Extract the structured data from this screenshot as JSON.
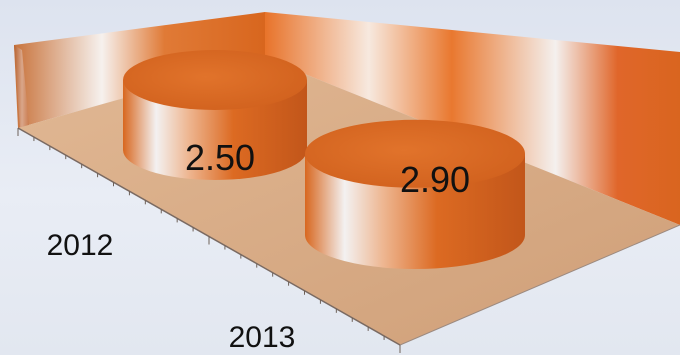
{
  "chart_data": {
    "type": "bar",
    "style": "3d-cylinder",
    "categories": [
      "2012",
      "2013"
    ],
    "values": [
      2.5,
      2.9
    ],
    "data_labels": [
      "2.50",
      "2.90"
    ],
    "colors": {
      "cylinder": "#d9661f",
      "cylinder_highlight": "#f2f2f4",
      "floor": "#d7aa84",
      "wall": "#e8742a",
      "background": "#e3e8f1"
    },
    "grid": false,
    "legend": "none"
  }
}
